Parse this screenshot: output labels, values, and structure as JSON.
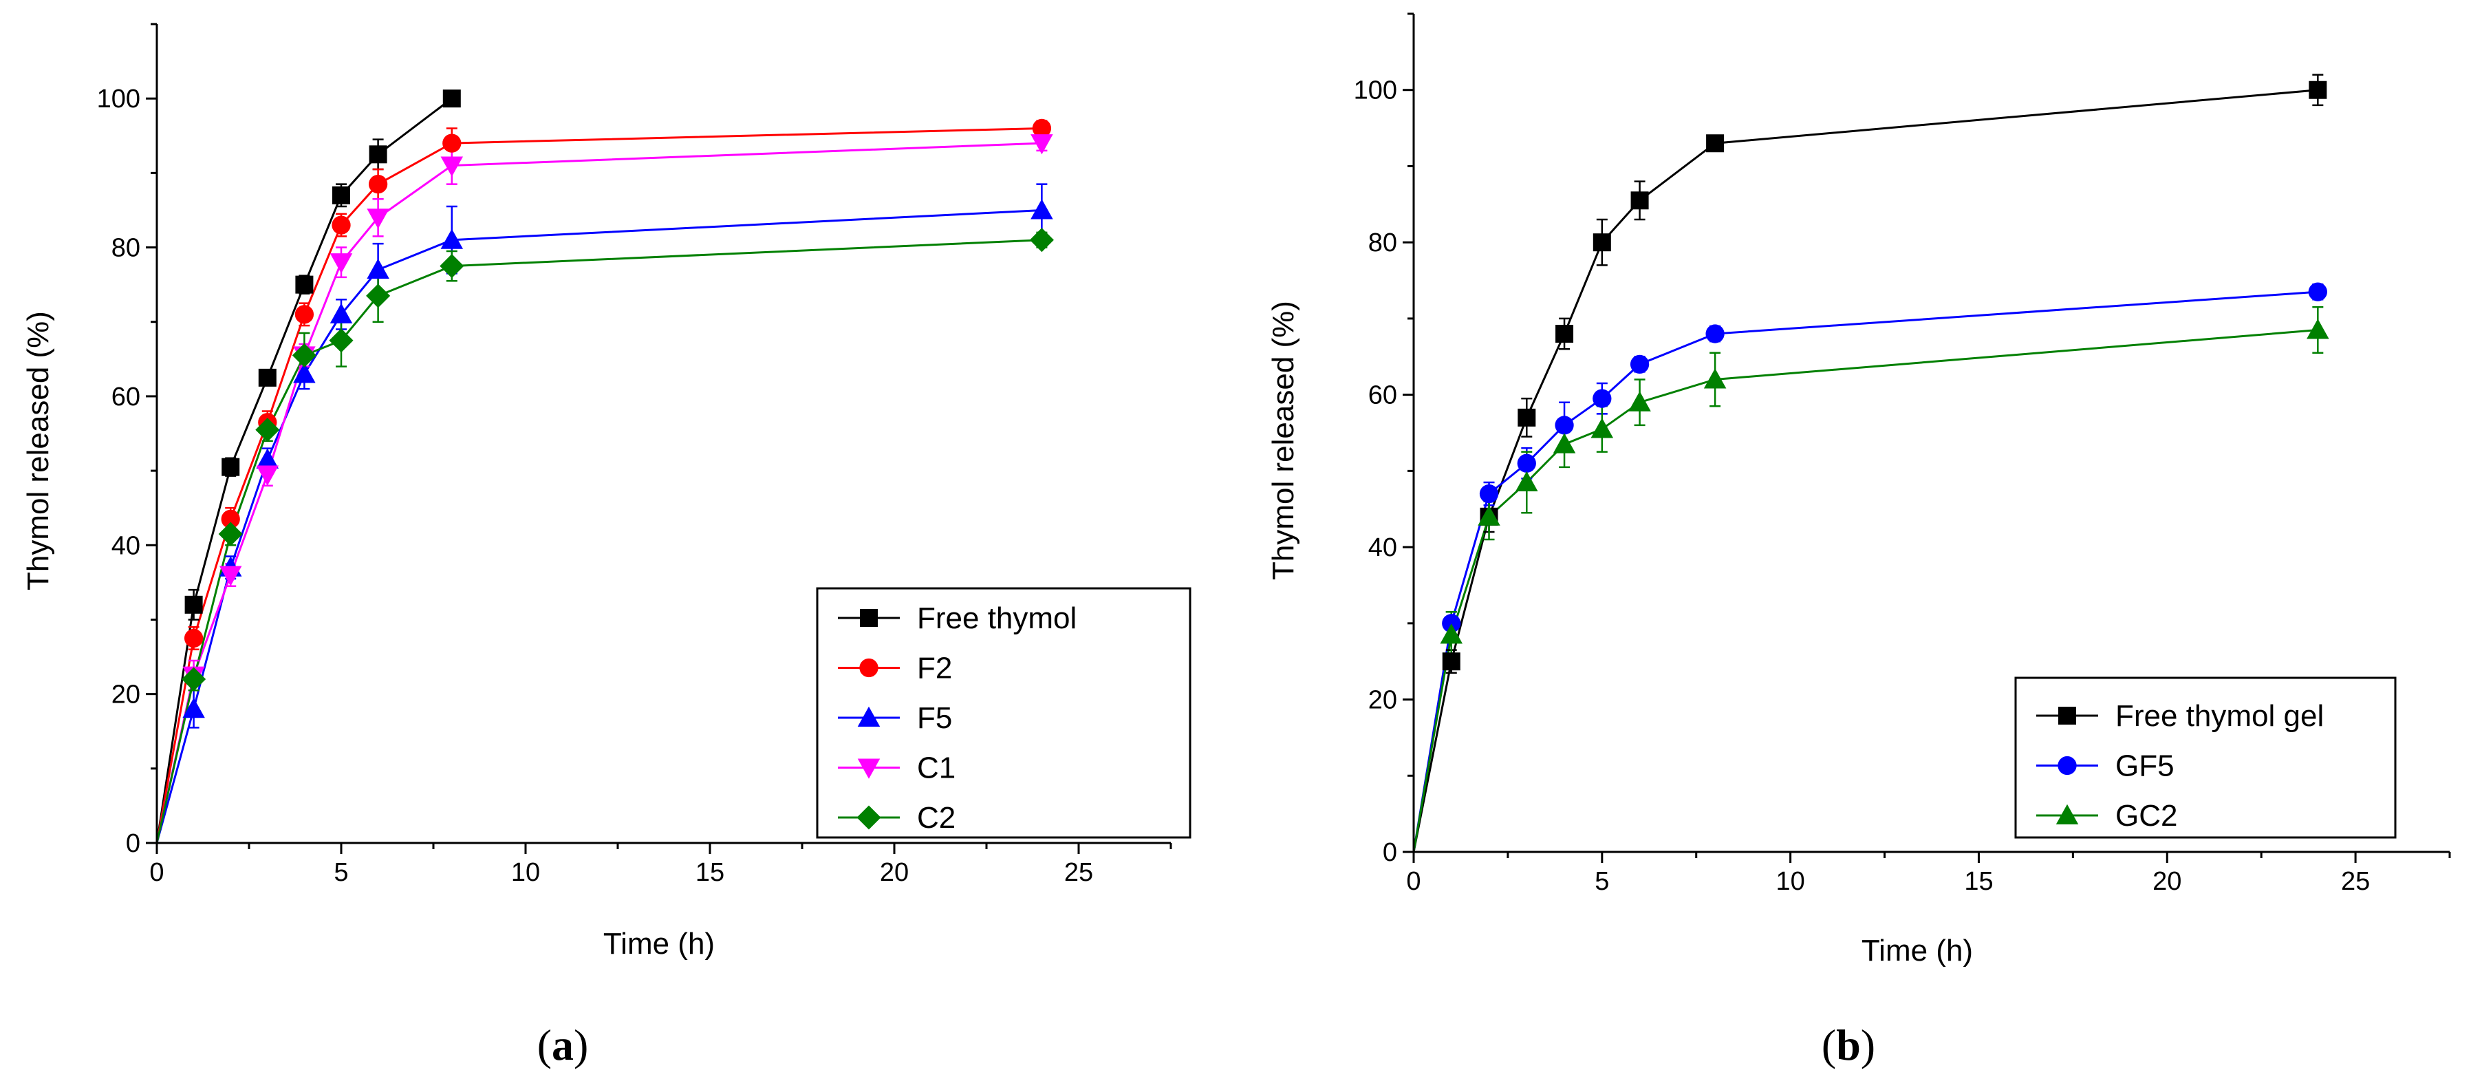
{
  "chart_data": [
    {
      "type": "line",
      "caption_open": "(",
      "caption_letter": "a",
      "caption_close": ")",
      "xlabel": "Time (h)",
      "ylabel": "Thymol released (%)",
      "xlim": [
        0,
        27.5
      ],
      "ylim": [
        0,
        110
      ],
      "xticks": [
        0,
        5,
        10,
        15,
        20,
        25
      ],
      "yticks": [
        0,
        20,
        40,
        60,
        80,
        100
      ],
      "legend_position": "bottom-right",
      "series": [
        {
          "name": "Free thymol",
          "color": "#000000",
          "marker": "square",
          "x": [
            0,
            1,
            2,
            3,
            4,
            5,
            6,
            8
          ],
          "y": [
            0,
            32,
            50.5,
            62.5,
            75,
            87,
            92.5,
            100
          ],
          "err": [
            0,
            2,
            1.2,
            1,
            1.2,
            1.5,
            2,
            1
          ]
        },
        {
          "name": "F2",
          "color": "#ff0000",
          "marker": "circle",
          "x": [
            0,
            1,
            2,
            3,
            4,
            5,
            6,
            8,
            24
          ],
          "y": [
            0,
            27.5,
            43.5,
            56.5,
            71,
            83,
            88.5,
            94,
            96
          ],
          "err": [
            0,
            1.5,
            1.5,
            1.5,
            1.5,
            1.5,
            2,
            2,
            1
          ]
        },
        {
          "name": "F5",
          "color": "#0000ff",
          "marker": "triangle-up",
          "x": [
            0,
            1,
            2,
            3,
            4,
            5,
            6,
            8,
            24
          ],
          "y": [
            0,
            18,
            37,
            51.5,
            63,
            71,
            77,
            81,
            85
          ],
          "err": [
            0,
            2.5,
            1.5,
            1.5,
            2,
            2,
            3.5,
            4.5,
            3.5
          ]
        },
        {
          "name": "C1",
          "color": "#ff00ff",
          "marker": "triangle-down",
          "x": [
            0,
            1,
            2,
            3,
            4,
            5,
            6,
            8,
            24
          ],
          "y": [
            0,
            22.5,
            36,
            49.5,
            65.5,
            78,
            84,
            91,
            94
          ],
          "err": [
            0,
            2,
            1.5,
            1.5,
            1.5,
            2,
            2.5,
            2.5,
            1
          ]
        },
        {
          "name": "C2",
          "color": "#008000",
          "marker": "diamond",
          "x": [
            0,
            1,
            2,
            3,
            4,
            5,
            6,
            8,
            24
          ],
          "y": [
            0,
            22,
            41.5,
            55.5,
            65.5,
            67.5,
            73.5,
            77.5,
            81
          ],
          "err": [
            0,
            1.5,
            1.5,
            1.5,
            3,
            3.5,
            3.5,
            2,
            1
          ]
        }
      ]
    },
    {
      "type": "line",
      "caption_open": "(",
      "caption_letter": "b",
      "caption_close": ")",
      "xlabel": "Time (h)",
      "ylabel": "Thymol released (%)",
      "xlim": [
        0,
        27.5
      ],
      "ylim": [
        0,
        110
      ],
      "xticks": [
        0,
        5,
        10,
        15,
        20,
        25
      ],
      "yticks": [
        0,
        20,
        40,
        60,
        80,
        100
      ],
      "legend_position": "bottom-right",
      "series": [
        {
          "name": "Free thymol gel",
          "color": "#000000",
          "marker": "square",
          "x": [
            0,
            1,
            2,
            3,
            4,
            5,
            6,
            8,
            24
          ],
          "y": [
            0,
            25,
            44,
            57,
            68,
            80,
            85.5,
            93,
            100
          ],
          "err": [
            0,
            1.5,
            2,
            2.5,
            2,
            3,
            2.5,
            1,
            2
          ]
        },
        {
          "name": "GF5",
          "color": "#0000ff",
          "marker": "circle",
          "x": [
            0,
            1,
            2,
            3,
            4,
            5,
            6,
            8,
            24
          ],
          "y": [
            0,
            30,
            47,
            51,
            56,
            59.5,
            64,
            68,
            73.5
          ],
          "err": [
            0,
            1.5,
            1.5,
            2,
            3,
            2,
            1,
            1,
            1
          ]
        },
        {
          "name": "GC2",
          "color": "#008000",
          "marker": "triangle-up",
          "x": [
            0,
            1,
            2,
            3,
            4,
            5,
            6,
            8,
            24
          ],
          "y": [
            0,
            28.5,
            44,
            48.5,
            53.5,
            55.5,
            59,
            62,
            68.5
          ],
          "err": [
            0,
            3,
            3,
            4,
            3,
            3,
            3,
            3.5,
            3
          ]
        }
      ]
    }
  ]
}
